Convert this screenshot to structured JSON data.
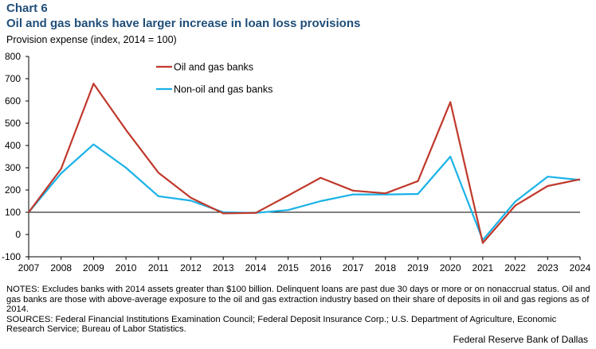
{
  "header": {
    "chart_label": "Chart 6",
    "title": "Oil and gas banks have larger increase in loan loss provisions",
    "ylabel": "Provision expense (index, 2014 = 100)"
  },
  "footer": {
    "notes": "NOTES: Excludes banks with 2014 assets greater than $100 billion. Delinquent loans are past due 30 days or more or on nonaccrual status. Oil and gas banks are those with above-average exposure to the oil and gas extraction industry based on their share of deposits in oil and gas regions as of 2014.",
    "sources": "SOURCES: Federal Financial Institutions Examination Council; Federal Deposit Insurance Corp.; U.S. Department of Agriculture, Economic Research Service; Bureau of Labor Statistics.",
    "credit": "Federal Reserve Bank of Dallas"
  },
  "chart_data": {
    "type": "line",
    "title": "Oil and gas banks have larger increase in loan loss provisions",
    "xlabel": "",
    "ylabel": "Provision expense (index, 2014 = 100)",
    "x": [
      "2007",
      "2008",
      "2009",
      "2010",
      "2011",
      "2012",
      "2013",
      "2014",
      "2015",
      "2016",
      "2017",
      "2018",
      "2019",
      "2020",
      "2021",
      "2022",
      "2023",
      "2024"
    ],
    "series": [
      {
        "name": "Oil and gas banks",
        "color": "#c0392b",
        "values": [
          100,
          295,
          678,
          470,
          278,
          165,
          95,
          97,
          175,
          255,
          197,
          185,
          240,
          595,
          -38,
          130,
          218,
          248
        ]
      },
      {
        "name": "Non-oil and gas banks",
        "color": "#1ab2e8",
        "values": [
          100,
          275,
          405,
          300,
          172,
          152,
          100,
          97,
          110,
          150,
          180,
          180,
          182,
          350,
          -25,
          148,
          260,
          245
        ]
      }
    ],
    "ylim": [
      -100,
      800
    ],
    "yticks": [
      -100,
      0,
      100,
      200,
      300,
      400,
      500,
      600,
      700,
      800
    ],
    "reference_line": 100,
    "grid": false,
    "legend_position": "top-left"
  }
}
